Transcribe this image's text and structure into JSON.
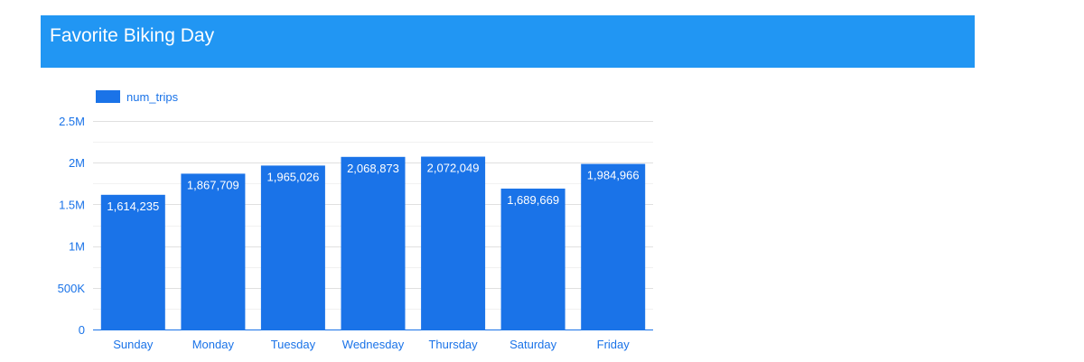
{
  "header": {
    "title": "Favorite Biking Day"
  },
  "colors": {
    "header_bg": "#2196f3",
    "bar": "#1a73e8",
    "axis_text": "#1a73e8",
    "gridline": "#e0e0e0",
    "value_label": "#ffffff"
  },
  "chart_data": {
    "type": "bar",
    "categories": [
      "Sunday",
      "Monday",
      "Tuesday",
      "Wednesday",
      "Thursday",
      "Saturday",
      "Friday"
    ],
    "series": [
      {
        "name": "num_trips",
        "values": [
          1614235,
          1867709,
          1965026,
          2068873,
          2072049,
          1689669,
          1984966
        ],
        "labels": [
          "1,614,235",
          "1,867,709",
          "1,965,026",
          "2,068,873",
          "2,072,049",
          "1,689,669",
          "1,984,966"
        ]
      }
    ],
    "ylim": [
      0,
      2500000
    ],
    "yticks": [
      0,
      500000,
      1000000,
      1500000,
      2000000,
      2500000
    ],
    "ytick_labels": [
      "0",
      "500K",
      "1M",
      "1.5M",
      "2M",
      "2.5M"
    ],
    "grid": true,
    "legend_position": "top-left",
    "title": "",
    "xlabel": "",
    "ylabel": ""
  }
}
